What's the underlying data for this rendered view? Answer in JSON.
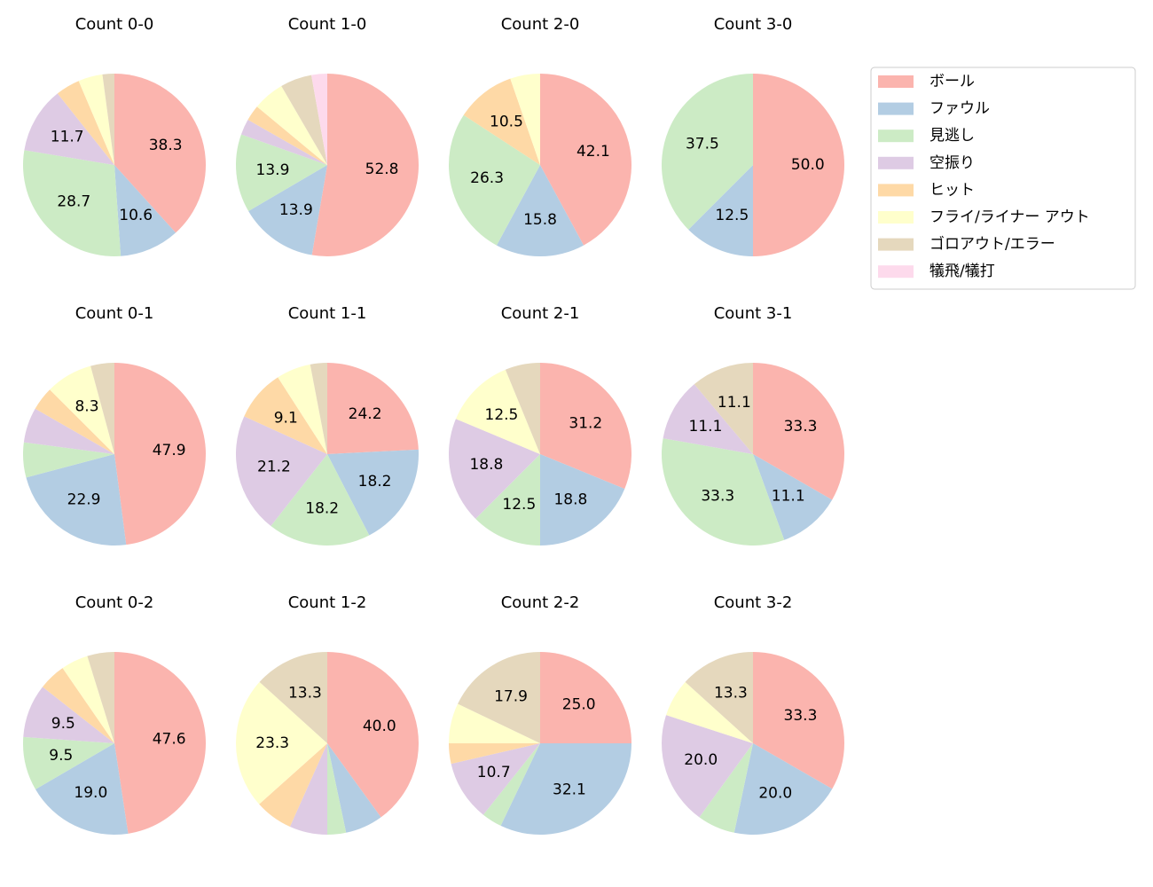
{
  "chart_data": [
    {
      "type": "pie",
      "title": "Count 0-0",
      "values": [
        38.3,
        10.6,
        28.7,
        11.7,
        4.3,
        4.3,
        2.1,
        0
      ],
      "value_labels": [
        "38.3",
        "10.6",
        "28.7",
        "11.7",
        null,
        null,
        null,
        null
      ]
    },
    {
      "type": "pie",
      "title": "Count 1-0",
      "values": [
        52.8,
        13.9,
        13.9,
        2.8,
        2.8,
        5.6,
        5.6,
        2.8
      ],
      "value_labels": [
        "52.8",
        "13.9",
        "13.9",
        null,
        null,
        null,
        null,
        null
      ]
    },
    {
      "type": "pie",
      "title": "Count 2-0",
      "values": [
        42.1,
        15.8,
        26.3,
        0,
        10.5,
        5.3,
        0,
        0
      ],
      "value_labels": [
        "42.1",
        "15.8",
        "26.3",
        null,
        "10.5",
        null,
        null,
        null
      ]
    },
    {
      "type": "pie",
      "title": "Count 3-0",
      "values": [
        50.0,
        12.5,
        37.5,
        0,
        0,
        0,
        0,
        0
      ],
      "value_labels": [
        "50.0",
        "12.5",
        "37.5",
        null,
        null,
        null,
        null,
        null
      ]
    },
    {
      "type": "pie",
      "title": "Count 0-1",
      "values": [
        47.9,
        22.9,
        6.2,
        6.2,
        4.2,
        8.3,
        4.2,
        0
      ],
      "value_labels": [
        "47.9",
        "22.9",
        null,
        null,
        null,
        "8.3",
        null,
        null
      ]
    },
    {
      "type": "pie",
      "title": "Count 1-1",
      "values": [
        24.2,
        18.2,
        18.2,
        21.2,
        9.1,
        6.1,
        3.0,
        0
      ],
      "value_labels": [
        "24.2",
        "18.2",
        "18.2",
        "21.2",
        "9.1",
        null,
        null,
        null
      ]
    },
    {
      "type": "pie",
      "title": "Count 2-1",
      "values": [
        31.2,
        18.8,
        12.5,
        18.8,
        0,
        12.5,
        6.2,
        0
      ],
      "value_labels": [
        "31.2",
        "18.8",
        "12.5",
        "18.8",
        null,
        "12.5",
        null,
        null
      ]
    },
    {
      "type": "pie",
      "title": "Count 3-1",
      "values": [
        33.3,
        11.1,
        33.3,
        11.1,
        0,
        0,
        11.1,
        0
      ],
      "value_labels": [
        "33.3",
        "11.1",
        "33.3",
        "11.1",
        null,
        null,
        "11.1",
        null
      ]
    },
    {
      "type": "pie",
      "title": "Count 0-2",
      "values": [
        47.6,
        19.0,
        9.5,
        9.5,
        4.8,
        4.8,
        4.8,
        0
      ],
      "value_labels": [
        "47.6",
        "19.0",
        "9.5",
        "9.5",
        null,
        null,
        null,
        null
      ]
    },
    {
      "type": "pie",
      "title": "Count 1-2",
      "values": [
        40.0,
        6.7,
        3.3,
        6.7,
        6.7,
        23.3,
        13.3,
        0
      ],
      "value_labels": [
        "40.0",
        null,
        null,
        null,
        null,
        "23.3",
        "13.3",
        null
      ]
    },
    {
      "type": "pie",
      "title": "Count 2-2",
      "values": [
        25.0,
        32.1,
        3.6,
        10.7,
        3.6,
        7.1,
        17.9,
        0
      ],
      "value_labels": [
        "25.0",
        "32.1",
        null,
        "10.7",
        null,
        null,
        "17.9",
        null
      ]
    },
    {
      "type": "pie",
      "title": "Count 3-2",
      "values": [
        33.3,
        20.0,
        6.7,
        20.0,
        0,
        6.7,
        13.3,
        0
      ],
      "value_labels": [
        "33.3",
        "20.0",
        null,
        "20.0",
        null,
        null,
        "13.3",
        null
      ]
    }
  ],
  "legend": {
    "categories": [
      "ボール",
      "ファウル",
      "見逃し",
      "空振り",
      "ヒット",
      "フライ/ライナー アウト",
      "ゴロアウト/エラー",
      "犠飛/犠打"
    ],
    "colors": [
      "#fbb4ae",
      "#b3cde3",
      "#ccebc5",
      "#decbe4",
      "#fed9a6",
      "#ffffcc",
      "#e5d8bd",
      "#fddaec"
    ]
  }
}
